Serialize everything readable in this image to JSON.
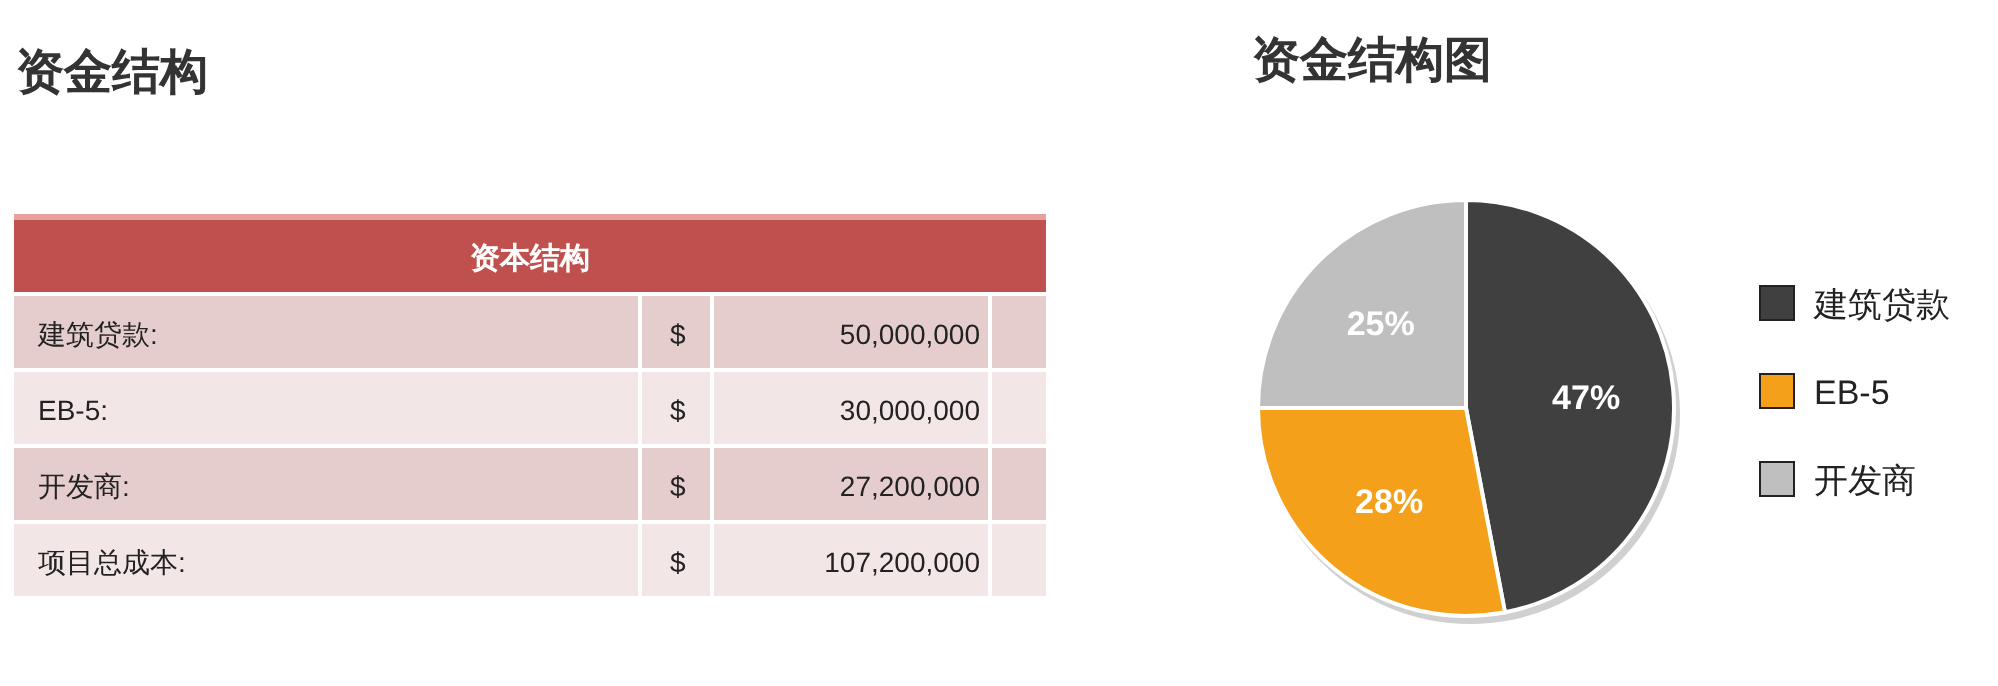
{
  "chart_data": [
    {
      "type": "other",
      "title": "资金结构",
      "annotations": [
        "资本结构",
        "建筑贷款:",
        "$",
        "50,000,000",
        "EB-5:",
        "$",
        "30,000,000",
        "开发商:",
        "$",
        "27,200,000",
        "项目总成本:",
        "$",
        "107,200,000"
      ]
    },
    {
      "type": "pie",
      "title": "资金结构图",
      "categories": [
        "建筑贷款",
        "EB-5",
        "开发商"
      ],
      "values": [
        47,
        28,
        25
      ],
      "colors": [
        "#404040",
        "#f5a01a",
        "#bfbfbf"
      ],
      "value_labels": [
        "47%",
        "28%",
        "25%"
      ],
      "legend": "right"
    }
  ]
}
